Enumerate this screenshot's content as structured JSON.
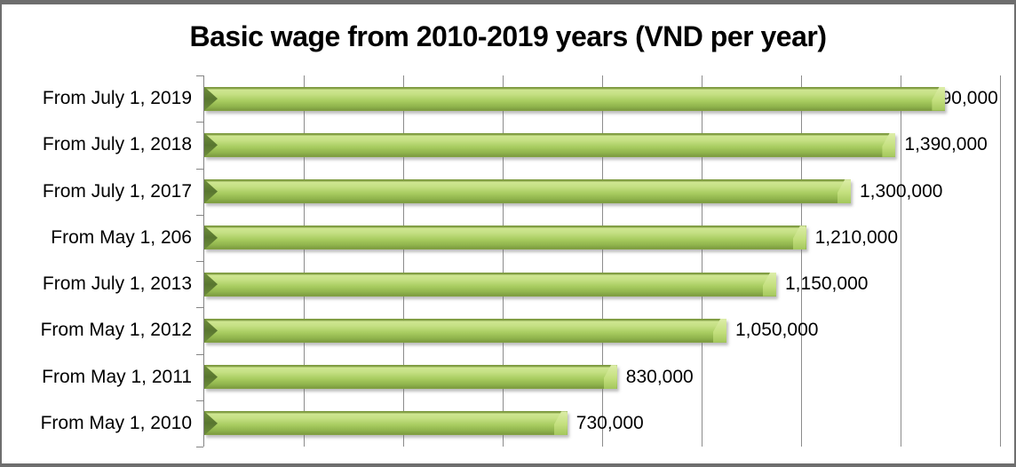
{
  "chart_data": {
    "type": "bar",
    "orientation": "horizontal",
    "title": "Basic wage from 2010-2019 years (VND per year)",
    "categories": [
      "From July 1, 2019",
      "From July 1, 2018",
      "From July 1, 2017",
      "From May 1, 206",
      "From July 1, 2013",
      "From May 1, 2012",
      "From May 1, 2011",
      "From May 1, 2010"
    ],
    "values": [
      1490000,
      1390000,
      1300000,
      1210000,
      1150000,
      1050000,
      830000,
      730000
    ],
    "data_labels": [
      "1,490,000",
      "1,390,000",
      "1,300,000",
      "1,210,000",
      "1,150,000",
      "1,050,000",
      "830,000",
      "730,000"
    ],
    "xlabel": "",
    "ylabel": "",
    "xlim": [
      0,
      1600000
    ],
    "x_major_unit": 200000,
    "grid": "vertical-major",
    "legend": "none",
    "colors": {
      "bar_green": "#9bbb59",
      "bar_highlight": "#cfe691",
      "bar_dark_bevel": "#5f7c30",
      "gridline_gray": "#8c8c8c",
      "frame_gray": "#6e6e6e",
      "text": "#000000",
      "background": "#ffffff"
    }
  }
}
